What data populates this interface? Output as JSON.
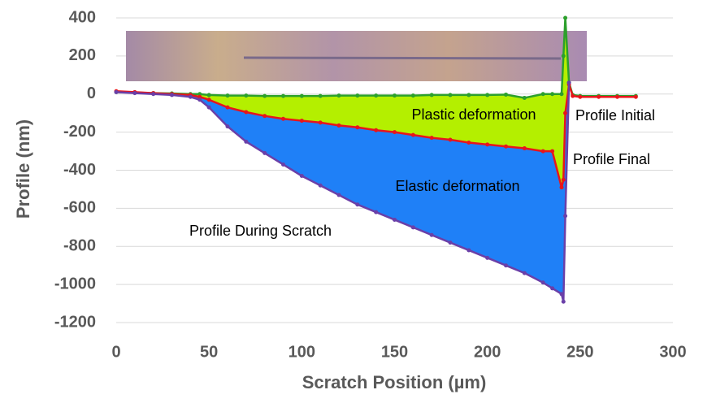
{
  "chart_data": {
    "type": "line",
    "xlabel": "Scratch Position (µm)",
    "ylabel": "Profile (nm)",
    "x": [
      0,
      10,
      20,
      30,
      40,
      45,
      50,
      60,
      70,
      80,
      90,
      100,
      110,
      120,
      130,
      140,
      150,
      160,
      170,
      180,
      190,
      200,
      210,
      220,
      230,
      235,
      240,
      241,
      242,
      244,
      246,
      250,
      260,
      270,
      280
    ],
    "series": [
      {
        "name": "Profile Initial",
        "color": "#2ca02c",
        "values": [
          10,
          8,
          5,
          3,
          0,
          0,
          -5,
          -8,
          -8,
          -10,
          -10,
          -10,
          -10,
          -8,
          -8,
          -8,
          -8,
          -8,
          -5,
          -5,
          -5,
          -5,
          -3,
          -20,
          0,
          0,
          0,
          200,
          400,
          60,
          -5,
          -10,
          -10,
          -10,
          -10
        ]
      },
      {
        "name": "Profile Final",
        "color": "#e8151b",
        "values": [
          15,
          10,
          5,
          0,
          -5,
          -15,
          -30,
          -70,
          -95,
          -115,
          -130,
          -140,
          -150,
          -165,
          -175,
          -190,
          -200,
          -215,
          -230,
          -240,
          -255,
          -265,
          -275,
          -285,
          -300,
          -300,
          -490,
          -450,
          -100,
          50,
          -10,
          -15,
          -15,
          -15,
          -15
        ]
      },
      {
        "name": "Profile During Scratch",
        "color": "#6a3fa8",
        "values": [
          10,
          5,
          0,
          -5,
          -15,
          -30,
          -70,
          -170,
          -250,
          -310,
          -370,
          -430,
          -480,
          -530,
          -580,
          -620,
          -660,
          -700,
          -740,
          -780,
          -820,
          -860,
          -900,
          -940,
          -990,
          -1020,
          -1050,
          -1090,
          -640,
          60,
          null,
          null,
          null,
          null,
          null
        ]
      }
    ],
    "annotations": [
      "Plastic deformation",
      "Elastic deformation"
    ],
    "fills": [
      {
        "color": "#b4ef00"
      },
      {
        "color": "#1f80f7"
      }
    ],
    "xlim": [
      0,
      300
    ],
    "xticks": [
      0,
      50,
      100,
      150,
      200,
      250,
      300
    ],
    "ylim": [
      -1200,
      400
    ],
    "yticks": [
      -1200,
      -1000,
      -800,
      -600,
      -400,
      -200,
      0,
      200,
      400
    ],
    "grid": true
  }
}
